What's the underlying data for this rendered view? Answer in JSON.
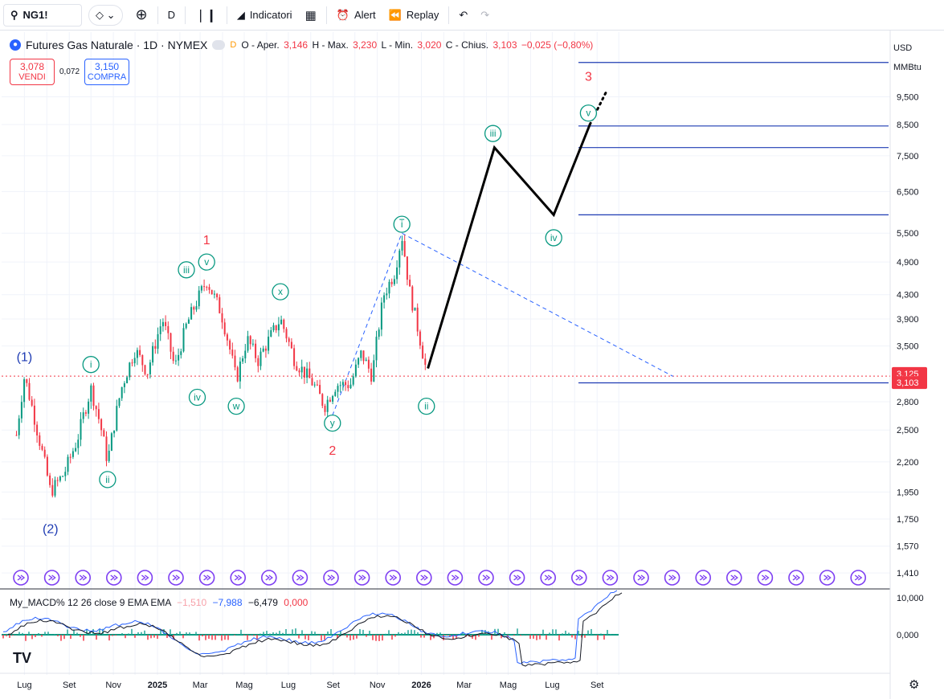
{
  "toolbar": {
    "symbol": "NG1!",
    "interval": "D",
    "indicators_label": "Indicatori",
    "alert_label": "Alert",
    "replay_label": "Replay"
  },
  "legend": {
    "title": "Futures Gas Naturale · 1D · NYMEX",
    "badge_d": "D",
    "o_label": "O - Aper.",
    "o_value": "3,146",
    "h_label": "H - Max.",
    "h_value": "3,230",
    "l_label": "L - Min.",
    "l_value": "3,020",
    "c_label": "C - Chius.",
    "c_value": "3,103",
    "change": "−0,025 (−0,80%)"
  },
  "trade": {
    "sell_price": "3,078",
    "sell_label": "VENDI",
    "spread": "0,072",
    "buy_price": "3,150",
    "buy_label": "COMPRA"
  },
  "axis_header": {
    "currency": "USD",
    "unit": "MMBtu"
  },
  "macd_legend": {
    "name": "My_MACD% 12 26 close 9 EMA EMA",
    "v1": "−1,510",
    "v2": "−7,988",
    "v3": "−6,479",
    "v4": "0,000"
  },
  "colors": {
    "up": "#089981",
    "down": "#f23645",
    "wave_green": "#089981",
    "wave_red": "#f23645",
    "wave_blue": "#2962ff",
    "levels": "#1e3bb3",
    "macd": "#2962ff",
    "signal": "#131722"
  },
  "chart_data": {
    "type": "candlestick",
    "price_scale": "log",
    "price_ticks": [
      "9,500",
      "8,500",
      "7,500",
      "6,500",
      "5,500",
      "4,900",
      "4,300",
      "3,900",
      "3,500",
      "2,800",
      "2,500",
      "2,200",
      "1,950",
      "1,750",
      "1,570",
      "1,410"
    ],
    "price_labels": {
      "last": "3,103",
      "current": "3,125"
    },
    "time_ticks": [
      "Lug",
      "Set",
      "Nov",
      "2025",
      "Mar",
      "Mag",
      "Lug",
      "Set",
      "Nov",
      "2026",
      "Mar",
      "Mag",
      "Lug",
      "Set"
    ],
    "macd_ticks": [
      "10,000",
      "0,000"
    ],
    "path_points": [
      [
        "2024-06-20",
        2.45
      ],
      [
        "2024-07-01",
        3.1
      ],
      [
        "2024-07-20",
        2.45
      ],
      [
        "2024-08-06",
        1.95
      ],
      [
        "2024-08-25",
        2.1
      ],
      [
        "2024-09-12",
        2.4
      ],
      [
        "2024-10-01",
        2.95
      ],
      [
        "2024-10-14",
        2.55
      ],
      [
        "2024-10-24",
        2.2
      ],
      [
        "2024-11-12",
        2.95
      ],
      [
        "2024-12-01",
        3.45
      ],
      [
        "2024-12-18",
        3.15
      ],
      [
        "2025-01-08",
        3.9
      ],
      [
        "2025-01-25",
        3.2
      ],
      [
        "2025-02-10",
        3.8
      ],
      [
        "2025-03-10",
        4.55
      ],
      [
        "2025-03-30",
        4.0
      ],
      [
        "2025-04-20",
        3.05
      ],
      [
        "2025-05-05",
        3.6
      ],
      [
        "2025-05-20",
        3.3
      ],
      [
        "2025-06-20",
        3.9
      ],
      [
        "2025-07-10",
        3.3
      ],
      [
        "2025-08-05",
        3.0
      ],
      [
        "2025-08-20",
        2.75
      ],
      [
        "2025-09-05",
        3.0
      ],
      [
        "2025-09-25",
        3.0
      ],
      [
        "2025-10-10",
        3.4
      ],
      [
        "2025-10-25",
        3.1
      ],
      [
        "2025-11-10",
        4.3
      ],
      [
        "2025-11-25",
        4.7
      ],
      [
        "2025-12-05",
        5.45
      ],
      [
        "2025-12-15",
        4.4
      ],
      [
        "2025-12-28",
        3.7
      ],
      [
        "2026-01-08",
        3.15
      ]
    ],
    "levels": [
      10.9,
      8.45,
      7.75,
      5.92,
      3.02
    ],
    "annotations": [
      {
        "text": "(1)",
        "date": "2024-07-01",
        "price": 3.35,
        "style": "blue"
      },
      {
        "text": "(2)",
        "date": "2024-08-06",
        "price": 1.68,
        "style": "blue"
      },
      {
        "text": "i",
        "date": "2024-10-01",
        "price": 3.25,
        "style": "circle"
      },
      {
        "text": "ii",
        "date": "2024-10-24",
        "price": 2.05,
        "style": "circle"
      },
      {
        "text": "iii",
        "date": "2025-02-10",
        "price": 4.75,
        "style": "circle"
      },
      {
        "text": "iv",
        "date": "2025-02-25",
        "price": 2.85,
        "style": "circle"
      },
      {
        "text": "v",
        "date": "2025-03-10",
        "price": 4.9,
        "style": "circle"
      },
      {
        "text": "1",
        "date": "2025-03-10",
        "price": 5.35,
        "style": "red"
      },
      {
        "text": "w",
        "date": "2025-04-20",
        "price": 2.75,
        "style": "circle"
      },
      {
        "text": "x",
        "date": "2025-06-20",
        "price": 4.35,
        "style": "circle"
      },
      {
        "text": "y",
        "date": "2025-08-31",
        "price": 2.57,
        "style": "circle"
      },
      {
        "text": "2",
        "date": "2025-08-31",
        "price": 2.3,
        "style": "red"
      },
      {
        "text": "i",
        "date": "2025-12-05",
        "price": 5.7,
        "style": "circle_bar"
      },
      {
        "text": "ii",
        "date": "2026-01-08",
        "price": 2.75,
        "style": "circle"
      },
      {
        "text": "iii",
        "date": "2026-04-10",
        "price": 8.2,
        "style": "circle"
      },
      {
        "text": "iv",
        "date": "2026-07-03",
        "price": 5.4,
        "style": "circle"
      },
      {
        "text": "v",
        "date": "2026-08-20",
        "price": 8.9,
        "style": "circle"
      },
      {
        "text": "3",
        "date": "2026-08-20",
        "price": 10.3,
        "style": "red"
      }
    ],
    "projection": [
      [
        "2026-01-10",
        3.2
      ],
      [
        "2026-04-12",
        7.75
      ],
      [
        "2026-07-03",
        5.92
      ],
      [
        "2026-08-22",
        8.5
      ]
    ],
    "trend_line": [
      [
        "2025-08-31",
        2.65
      ],
      [
        "2025-12-05",
        5.5
      ],
      [
        "2026-12-15",
        3.1
      ]
    ]
  }
}
